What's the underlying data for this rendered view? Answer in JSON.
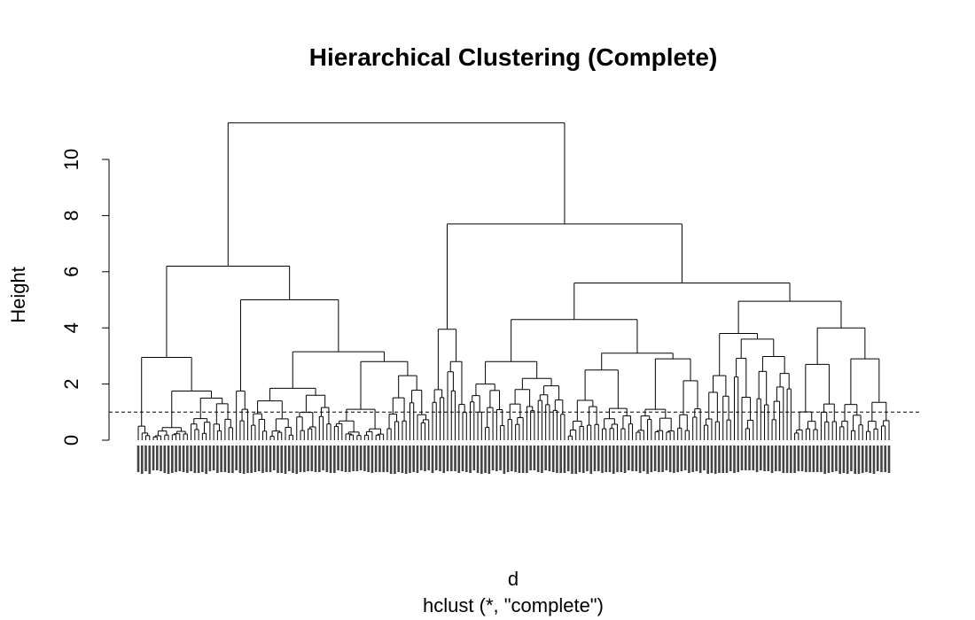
{
  "chart_data": {
    "type": "dendrogram",
    "title": "Hierarchical Clustering (Complete)",
    "xlabel": "d",
    "sublabel": "hclust (*, \"complete\")",
    "ylabel": "Height",
    "ylim": [
      0,
      11.8
    ],
    "yticks": [
      0,
      2,
      4,
      6,
      8,
      10
    ],
    "cut_height": 1.0,
    "root_height": 11.3,
    "main_merges": [
      {
        "name": "left-cluster",
        "height": 6.2
      },
      {
        "name": "right-cluster",
        "height": 7.7
      },
      {
        "name": "left-outer",
        "height": 2.95
      },
      {
        "name": "left-inner",
        "height": 5.0
      },
      {
        "name": "left-inner-right",
        "height": 3.15
      },
      {
        "name": "left-inner-right-a",
        "height": 1.85
      },
      {
        "name": "left-inner-right-b",
        "height": 2.8
      },
      {
        "name": "right-narrow",
        "height": 3.95
      },
      {
        "name": "right-wide",
        "height": 5.6
      },
      {
        "name": "right-wide-left",
        "height": 4.3
      },
      {
        "name": "right-wide-right",
        "height": 4.95
      },
      {
        "name": "right-wide-left-a",
        "height": 2.8
      },
      {
        "name": "right-wide-left-b",
        "height": 3.1
      },
      {
        "name": "right-wide-right-a",
        "height": 3.8
      },
      {
        "name": "right-wide-right-b",
        "height": 4.0
      }
    ]
  }
}
